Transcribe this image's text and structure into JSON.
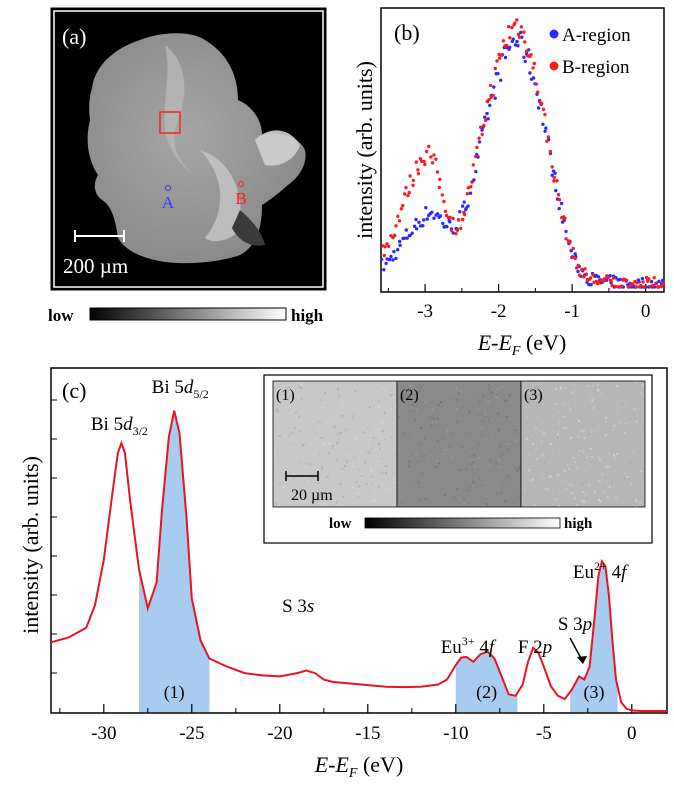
{
  "panel_a": {
    "label": "(a)",
    "point_a": "A",
    "point_b": "B",
    "scale_bar": "200 µm",
    "colorbar_low": "low",
    "colorbar_high": "high"
  },
  "inset": {
    "tiles": [
      "(1)",
      "(2)",
      "(3)"
    ],
    "tile_colors": [
      "#c8c8c8",
      "#8a8a8a",
      "#b6b6b6"
    ],
    "scale_bar": "20 µm",
    "colorbar_low": "low",
    "colorbar_high": "high"
  },
  "colors": {
    "a_region": "#2a2aff",
    "b_region": "#ff1a1a",
    "spectrum": "#e8141e",
    "fill": "#a8ccf0"
  },
  "chart_data": [
    {
      "id": "b",
      "type": "scatter",
      "panel_label": "(b)",
      "xlabel_italic": "E-E",
      "xlabel_sub": "F",
      "xlabel_unit": " (eV)",
      "ylabel": "intensity (arb. units)",
      "xlim": [
        -3.6,
        0.25
      ],
      "ylim": [
        0,
        1.0
      ],
      "xticks": [
        -3,
        -2,
        -1,
        0
      ],
      "xtick_labels": [
        "-3",
        "-2",
        "-1",
        "0"
      ],
      "legend": "top-right",
      "series": [
        {
          "name": "A-region",
          "color": "#2a2aff",
          "x": [
            -3.55,
            -3.45,
            -3.35,
            -3.25,
            -3.15,
            -3.05,
            -2.95,
            -2.85,
            -2.75,
            -2.65,
            -2.55,
            -2.45,
            -2.35,
            -2.25,
            -2.15,
            -2.05,
            -1.95,
            -1.85,
            -1.75,
            -1.7,
            -1.65,
            -1.6,
            -1.55,
            -1.45,
            -1.35,
            -1.25,
            -1.15,
            -1.05,
            -0.95,
            -0.85,
            -0.75,
            -0.6,
            -0.4,
            -0.2,
            0.0,
            0.2
          ],
          "y": [
            0.08,
            0.11,
            0.15,
            0.19,
            0.22,
            0.25,
            0.28,
            0.27,
            0.24,
            0.22,
            0.24,
            0.3,
            0.4,
            0.52,
            0.64,
            0.74,
            0.83,
            0.9,
            0.92,
            0.9,
            0.88,
            0.85,
            0.8,
            0.7,
            0.56,
            0.42,
            0.29,
            0.17,
            0.09,
            0.05,
            0.03,
            0.02,
            0.015,
            0.01,
            0.01,
            0.01
          ]
        },
        {
          "name": "B-region",
          "color": "#ff1a1a",
          "x": [
            -3.55,
            -3.45,
            -3.35,
            -3.25,
            -3.15,
            -3.05,
            -2.95,
            -2.85,
            -2.75,
            -2.65,
            -2.55,
            -2.45,
            -2.35,
            -2.25,
            -2.15,
            -2.05,
            -1.95,
            -1.85,
            -1.75,
            -1.7,
            -1.65,
            -1.6,
            -1.55,
            -1.45,
            -1.35,
            -1.25,
            -1.15,
            -1.05,
            -0.95,
            -0.85,
            -0.75,
            -0.6,
            -0.4,
            -0.2,
            0.0,
            0.2
          ],
          "y": [
            0.14,
            0.19,
            0.27,
            0.35,
            0.42,
            0.48,
            0.5,
            0.44,
            0.33,
            0.24,
            0.22,
            0.3,
            0.42,
            0.55,
            0.68,
            0.78,
            0.88,
            0.95,
            0.98,
            0.96,
            0.93,
            0.9,
            0.84,
            0.73,
            0.58,
            0.43,
            0.29,
            0.17,
            0.09,
            0.05,
            0.03,
            0.02,
            0.015,
            0.01,
            0.01,
            0.01
          ]
        }
      ]
    },
    {
      "id": "c",
      "type": "line",
      "panel_label": "(c)",
      "xlabel_italic": "E-E",
      "xlabel_sub": "F",
      "xlabel_unit": " (eV)",
      "ylabel": "intensity (arb. units)",
      "xlim": [
        -33,
        2
      ],
      "ylim": [
        0,
        1.0
      ],
      "xticks": [
        -30,
        -25,
        -20,
        -15,
        -10,
        -5,
        0
      ],
      "xtick_labels": [
        "-30",
        "-25",
        "-20",
        "-15",
        "-10",
        "-5",
        "0"
      ],
      "series": [
        {
          "name": "",
          "color": "#e8141e",
          "x": [
            -33,
            -32,
            -31,
            -30.5,
            -30,
            -29.5,
            -29.2,
            -29,
            -28.8,
            -28.5,
            -28,
            -27.5,
            -27,
            -26.7,
            -26.3,
            -26,
            -25.7,
            -25.3,
            -25,
            -24.5,
            -24,
            -23,
            -22,
            -21,
            -20,
            -19,
            -18.5,
            -18,
            -17.5,
            -17,
            -16,
            -15,
            -14,
            -13,
            -12,
            -11,
            -10.5,
            -10,
            -9.7,
            -9.4,
            -9.0,
            -8.6,
            -8.2,
            -7.8,
            -7.4,
            -7.0,
            -6.6,
            -6.2,
            -5.9,
            -5.6,
            -5.3,
            -5.0,
            -4.6,
            -4.2,
            -3.8,
            -3.4,
            -3.0,
            -2.7,
            -2.4,
            -2.1,
            -1.9,
            -1.7,
            -1.5,
            -1.3,
            -1.1,
            -0.9,
            -0.6,
            -0.3,
            0.0,
            0.5,
            1.0,
            2.0
          ],
          "y": [
            0.215,
            0.23,
            0.26,
            0.33,
            0.47,
            0.68,
            0.8,
            0.83,
            0.8,
            0.65,
            0.44,
            0.32,
            0.4,
            0.62,
            0.85,
            0.93,
            0.86,
            0.6,
            0.35,
            0.22,
            0.165,
            0.14,
            0.12,
            0.113,
            0.11,
            0.12,
            0.128,
            0.12,
            0.1,
            0.093,
            0.088,
            0.083,
            0.078,
            0.077,
            0.078,
            0.085,
            0.1,
            0.145,
            0.168,
            0.17,
            0.155,
            0.178,
            0.187,
            0.165,
            0.11,
            0.055,
            0.05,
            0.085,
            0.155,
            0.198,
            0.182,
            0.14,
            0.08,
            0.05,
            0.04,
            0.07,
            0.11,
            0.1,
            0.14,
            0.3,
            0.42,
            0.465,
            0.45,
            0.36,
            0.22,
            0.1,
            0.03,
            0.01,
            0.005,
            0.003,
            0.003,
            0.003
          ]
        }
      ],
      "annotations": [
        {
          "text": "Bi 5d",
          "sub": "3/2",
          "x": -29.0
        },
        {
          "text": "Bi 5d",
          "sub": "5/2",
          "x": -26.0
        },
        {
          "text": "S 3s",
          "x": -18.5
        },
        {
          "text": "Eu",
          "sup": "3+",
          "extra": " 4f",
          "x": -9.0
        },
        {
          "text": "F 2p",
          "x": -5.5
        },
        {
          "text": "S 3p",
          "x": -3.0
        },
        {
          "text": "Eu",
          "sup": "2+",
          "extra": " 4f",
          "x": -1.6
        }
      ],
      "shaded_regions": [
        {
          "label": "(1)",
          "from": -28.0,
          "to": -24.0
        },
        {
          "label": "(2)",
          "from": -10.0,
          "to": -6.5
        },
        {
          "label": "(3)",
          "from": -3.5,
          "to": -0.8
        }
      ]
    }
  ]
}
